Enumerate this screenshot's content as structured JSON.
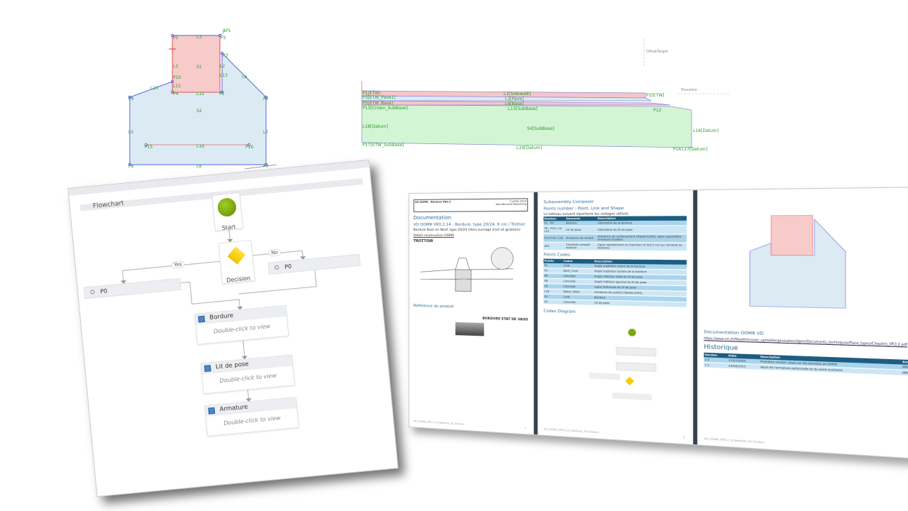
{
  "shape_editor": {
    "points": [
      "P1",
      "P2",
      "P3",
      "P4",
      "P5",
      "P6",
      "P7",
      "P8",
      "P9",
      "P10",
      "P15",
      "P16",
      "AP1"
    ],
    "links": [
      "L1",
      "L2",
      "L3",
      "L5",
      "L6",
      "L7",
      "L8",
      "L9",
      "L10",
      "L11",
      "L12",
      "L13",
      "L16"
    ],
    "shapes": [
      "S1",
      "S2"
    ]
  },
  "cross_section": {
    "labels": [
      "L1[Sidewalk]",
      "L3[Pave]",
      "L4[Base]",
      "L13[SubBase]",
      "L18[Datum]",
      "L19[Datum]",
      "L16[Datum]",
      "S4[SubBase]",
      "P1[ETW]",
      "P3[ETW_Pave1]",
      "P5[ETW_Base]",
      "P13[Crown_SubBase]",
      "P17[ETW_SubBase]",
      "P2[ETW]",
      "P16",
      "P12",
      "L17[Datum]"
    ],
    "offset_target": "OffsetTarget",
    "elevation": "Elevation"
  },
  "flowchart": {
    "title": "Flowchart",
    "start": "Start",
    "decision": "Decision",
    "yes": "Yes",
    "no": "No",
    "left_branch": "P0",
    "right_branch": "P0",
    "activities": [
      {
        "name": "Bordure",
        "hint": "Double-click to view"
      },
      {
        "name": "Lit de pose",
        "hint": "Double-click to view"
      },
      {
        "name": "Armature",
        "hint": "Double-click to view"
      }
    ],
    "colors": {
      "start": "#7aa812",
      "decision": "#f5cd00",
      "activity_icon": "#4a86c8"
    }
  },
  "doc": {
    "page1": {
      "header_left": "VD OOMR - Bordure VR3.2",
      "header_right": "Jean-Bernard Beaufrong",
      "date": "3 juillet 2024",
      "title": "Documentation",
      "subtitle": "VD OOMR VR3.2.14 - Bordure, type 20/24, 9 cm / Trottoir",
      "desc": "Bordure Biais en Neuf, type 20/24 (Hors ouvrage d'art et giratoire)",
      "detail": "Détail construction OOMR",
      "trottoir": "TROTTOIR",
      "ref": "Référence du produit",
      "product": "BORDURE ETAT DE VAUD",
      "footer": "VD_OOMR_VR3.2.14_Bordure_20-24.docx",
      "page_no": "1"
    },
    "page2": {
      "title": "Subassembly Composer",
      "points_title": "Points number : Point, Link and Shape",
      "intro": "Le tableau suivant répertorie les codages utilisés",
      "table1_headers": [
        "Number",
        "Elements",
        "Description"
      ],
      "table1_rows": [
        [
          "P1 - P5",
          "Bordure",
          "Géométrie de la bordure"
        ],
        [
          "P6 - P10 / L9-L13",
          "Lit de pose",
          "Géométrie du lit de pose"
        ],
        [
          "P15-P16 / L16",
          "Armature de renfort",
          "Armature de renforcement (Treillis K355), selon paramètre : Armature Oui/Non"
        ],
        [
          "AP1",
          "Chanfrein arrondi bordure",
          "Ligne représentant le chanfrein (0.5/0.5 cm sur l'arrondi du bordure)"
        ]
      ],
      "codes_title": "Points Codes",
      "table2_headers": [
        "Points",
        "Codes",
        "Description"
      ],
      "table2_rows": [
        [
          "P1",
          "Curb",
          "Angle supérieur avant de la bordure"
        ],
        [
          "P2",
          "Back_Curb",
          "Angle supérieur arrière de la bordure"
        ],
        [
          "P6",
          "Concrete",
          "Angle inférieur droit du lit de pose"
        ],
        [
          "P8",
          "Concrete",
          "Angle inférieur gauche du lit de pose"
        ],
        [
          "L8",
          "Concrete",
          "Ligne inférieure du lit de pose"
        ],
        [
          "L16",
          "Rebar_Mesh",
          "Armature de renfort (Treillis K355)"
        ],
        [
          "S1",
          "Curb",
          "Bordure"
        ],
        [
          "S2",
          "Concrete",
          "Lit de pose"
        ]
      ],
      "diagram_title": "Codes Diagram",
      "footer": "VD_OOMR_VR3.2.14_Bordure_20-24.docx",
      "page_no": "2"
    },
    "page3": {
      "doc_title": "Documentation OOMR VD",
      "link": "https://www.vd.ch/fileadmin/user_upload/organisation/dgmr/Documents_techniques/Plans_types/Chapitre_VR3.2.pdf",
      "history": "Historique",
      "table_headers": [
        "Version",
        "Date",
        "Description",
        "Auteur"
      ],
      "table_rows": [
        [
          "1.0",
          "17/07/2024",
          "Première version, basé sur les données du DMTR",
          "JBB"
        ],
        [
          "1.1",
          "24/06/2025",
          "Ajout de l'armature optionnelle et du point auxiliaire",
          "JBB"
        ]
      ],
      "footer": "VD_OOMR_VR3.2.14_Bordure_20-24.docx",
      "page_no": "3"
    }
  }
}
